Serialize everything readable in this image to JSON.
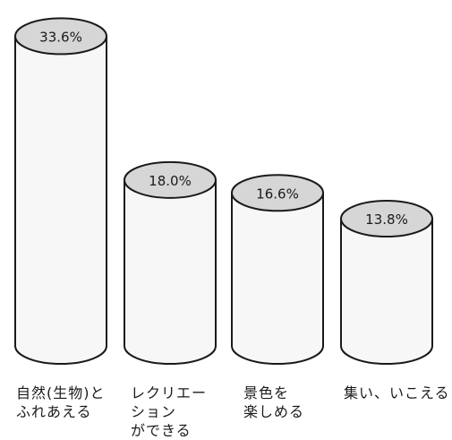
{
  "chart_data": {
    "type": "bar",
    "style": "3d-cylinder",
    "categories": [
      "自然(生物)と\nふれあえる",
      "レクリエー\nション\nができる",
      "景色を\n楽しめる",
      "集い、いこえる"
    ],
    "values": [
      33.6,
      18.0,
      16.6,
      13.8
    ],
    "value_labels": [
      "33.6%",
      "18.0%",
      "16.6%",
      "13.8%"
    ],
    "unit": "%",
    "title": "",
    "xlabel": "",
    "ylabel": "",
    "ylim": [
      0,
      35
    ],
    "grid": false,
    "legend": "none",
    "colors": {
      "body": "#f7f7f7",
      "top": "#d6d6d6",
      "outline": "#1a1a1a"
    }
  }
}
